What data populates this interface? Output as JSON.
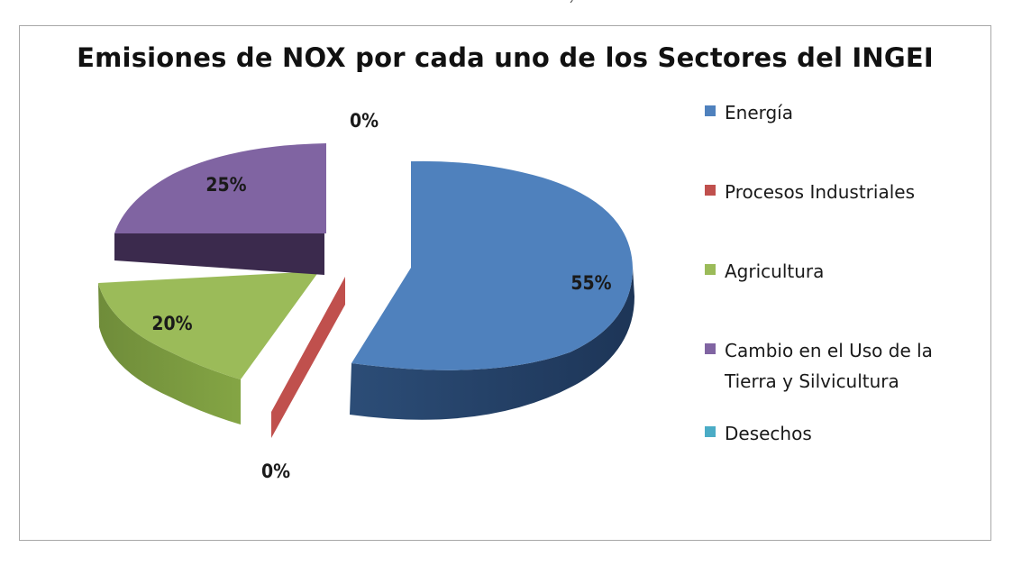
{
  "chart_data": {
    "type": "pie",
    "title": "Emisiones de NOX por cada uno de los Sectores  del INGEI",
    "three_d": true,
    "exploded": true,
    "legend_position": "right",
    "categories": [
      "Energía",
      "Procesos Industriales",
      "Agricultura",
      "Cambio en el Uso de la Tierra y Silvicultura",
      "Desechos"
    ],
    "values": [
      55,
      0,
      20,
      25,
      0
    ],
    "data_labels": [
      "55%",
      "0%",
      "20%",
      "25%",
      "0%"
    ],
    "colors": [
      "#4f81bd",
      "#c0504d",
      "#9bbb59",
      "#8064a2",
      "#4bacc6"
    ]
  },
  "stray_mark": "´"
}
